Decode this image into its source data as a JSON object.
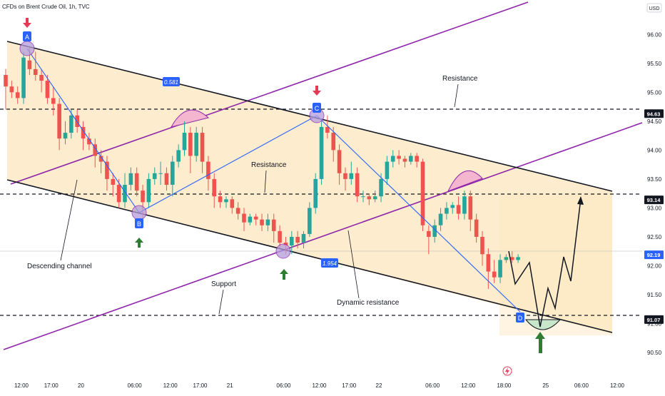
{
  "chart_data": {
    "type": "candlestick",
    "title": "CFDs on Brent Crude Oil, 1h, TVC",
    "currency": "USD",
    "ylim": [
      90.18,
      96.25
    ],
    "y_ticks": [
      {
        "label": "96.00",
        "v": 96.0
      },
      {
        "label": "95.50",
        "v": 95.5
      },
      {
        "label": "95.00",
        "v": 95.0
      },
      {
        "label": "94.50",
        "v": 94.5
      },
      {
        "label": "94.00",
        "v": 94.0
      },
      {
        "label": "93.50",
        "v": 93.5
      },
      {
        "label": "93.00",
        "v": 93.0
      },
      {
        "label": "92.50",
        "v": 92.5
      },
      {
        "label": "92.00",
        "v": 92.0
      },
      {
        "label": "91.50",
        "v": 91.5
      },
      {
        "label": "91.00",
        "v": 91.0
      },
      {
        "label": "90.50",
        "v": 90.5
      }
    ],
    "x_ticks": [
      {
        "label": "12:00",
        "i": 0
      },
      {
        "label": "17:00",
        "i": 5
      },
      {
        "label": "20",
        "i": 10
      },
      {
        "label": "06:00",
        "i": 19
      },
      {
        "label": "12:00",
        "i": 25
      },
      {
        "label": "17:00",
        "i": 30
      },
      {
        "label": "21",
        "i": 35
      },
      {
        "label": "06:00",
        "i": 44
      },
      {
        "label": "12:00",
        "i": 50
      },
      {
        "label": "17:00",
        "i": 55
      },
      {
        "label": "22",
        "i": 60
      },
      {
        "label": "06:00",
        "i": 69
      },
      {
        "label": "12:00",
        "i": 75
      },
      {
        "label": "18:00",
        "i": 81
      },
      {
        "label": "25",
        "i": 88
      },
      {
        "label": "06:00",
        "i": 94
      },
      {
        "label": "12:00",
        "i": 100
      }
    ],
    "candles": [
      [
        95.3,
        95.1,
        95.4,
        94.7
      ],
      [
        95.1,
        95.0,
        95.2,
        94.9
      ],
      [
        95.0,
        94.9,
        95.1,
        94.8
      ],
      [
        94.9,
        95.6,
        95.7,
        94.8
      ],
      [
        95.55,
        95.4,
        95.8,
        95.3
      ],
      [
        95.4,
        95.3,
        95.7,
        95.2
      ],
      [
        95.3,
        95.2,
        95.4,
        95.0
      ],
      [
        95.2,
        94.9,
        95.3,
        94.8
      ],
      [
        94.9,
        94.8,
        95.1,
        94.6
      ],
      [
        94.8,
        94.2,
        94.9,
        94.0
      ],
      [
        94.2,
        94.3,
        94.5,
        94.1
      ],
      [
        94.3,
        94.6,
        94.7,
        94.2
      ],
      [
        94.6,
        94.4,
        94.7,
        94.3
      ],
      [
        94.4,
        94.2,
        94.5,
        94.0
      ],
      [
        94.2,
        94.1,
        94.3,
        94.0
      ],
      [
        94.1,
        93.9,
        94.2,
        93.7
      ],
      [
        93.9,
        93.8,
        94.0,
        93.6
      ],
      [
        93.8,
        93.5,
        93.9,
        93.3
      ],
      [
        93.5,
        93.4,
        93.6,
        93.2
      ],
      [
        93.4,
        93.1,
        93.5,
        93.0
      ],
      [
        93.1,
        93.4,
        93.6,
        93.0
      ],
      [
        93.4,
        93.6,
        93.7,
        93.3
      ],
      [
        93.6,
        93.3,
        93.7,
        93.2
      ],
      [
        93.3,
        93.1,
        93.4,
        92.7
      ],
      [
        93.1,
        93.5,
        93.6,
        93.0
      ],
      [
        93.5,
        93.6,
        93.7,
        93.4
      ],
      [
        93.6,
        93.6,
        93.8,
        93.4
      ],
      [
        93.6,
        93.4,
        93.7,
        93.3
      ],
      [
        93.4,
        93.8,
        93.9,
        93.2
      ],
      [
        93.8,
        94.0,
        94.1,
        93.7
      ],
      [
        94.0,
        94.3,
        94.5,
        93.9
      ],
      [
        94.3,
        93.9,
        94.4,
        93.6
      ],
      [
        93.9,
        94.3,
        94.4,
        93.8
      ],
      [
        94.3,
        93.8,
        94.4,
        93.6
      ],
      [
        93.8,
        93.5,
        93.9,
        93.3
      ],
      [
        93.5,
        93.2,
        93.6,
        93.0
      ],
      [
        93.2,
        93.1,
        93.3,
        93.0
      ],
      [
        93.1,
        93.15,
        93.2,
        93.0
      ],
      [
        93.15,
        93.0,
        93.2,
        92.9
      ],
      [
        93.0,
        92.9,
        93.1,
        92.8
      ],
      [
        92.9,
        92.75,
        93.0,
        92.6
      ],
      [
        92.75,
        92.85,
        92.9,
        92.7
      ],
      [
        92.85,
        92.8,
        92.9,
        92.7
      ],
      [
        92.8,
        92.7,
        92.9,
        92.6
      ],
      [
        92.7,
        92.8,
        92.9,
        92.6
      ],
      [
        92.8,
        92.6,
        92.9,
        92.4
      ],
      [
        92.6,
        92.4,
        92.7,
        92.3
      ],
      [
        92.4,
        92.35,
        92.5,
        92.2
      ],
      [
        92.35,
        92.5,
        92.6,
        92.2
      ],
      [
        92.5,
        92.4,
        92.6,
        92.3
      ],
      [
        92.4,
        92.55,
        92.6,
        92.3
      ],
      [
        92.55,
        93.0,
        93.1,
        92.5
      ],
      [
        93.0,
        93.5,
        93.6,
        92.9
      ],
      [
        93.5,
        94.4,
        94.5,
        93.4
      ],
      [
        94.4,
        94.3,
        94.6,
        94.2
      ],
      [
        94.3,
        94.0,
        94.4,
        93.8
      ],
      [
        94.0,
        93.6,
        94.1,
        93.4
      ],
      [
        93.6,
        93.5,
        93.7,
        93.3
      ],
      [
        93.5,
        93.6,
        93.8,
        93.4
      ],
      [
        93.6,
        93.2,
        93.7,
        93.1
      ],
      [
        93.2,
        93.2,
        93.3,
        93.1
      ],
      [
        93.2,
        93.15,
        93.25,
        93.05
      ],
      [
        93.15,
        93.2,
        93.3,
        93.1
      ],
      [
        93.2,
        93.5,
        93.6,
        93.1
      ],
      [
        93.5,
        93.8,
        93.9,
        93.4
      ],
      [
        93.8,
        93.9,
        94.0,
        93.7
      ],
      [
        93.9,
        93.85,
        94.0,
        93.75
      ],
      [
        93.85,
        93.8,
        93.9,
        93.7
      ],
      [
        93.8,
        93.9,
        93.95,
        93.75
      ],
      [
        93.9,
        93.8,
        93.95,
        93.7
      ],
      [
        93.8,
        92.7,
        93.85,
        92.6
      ],
      [
        92.6,
        92.5,
        92.7,
        92.2
      ],
      [
        92.5,
        92.7,
        92.8,
        92.4
      ],
      [
        92.7,
        92.9,
        93.0,
        92.6
      ],
      [
        92.9,
        93.0,
        93.1,
        92.8
      ],
      [
        93.0,
        93.05,
        93.1,
        92.9
      ],
      [
        93.05,
        92.9,
        93.2,
        92.8
      ],
      [
        92.9,
        93.2,
        93.3,
        92.8
      ],
      [
        93.2,
        92.8,
        93.3,
        92.6
      ],
      [
        92.8,
        92.5,
        92.9,
        92.4
      ],
      [
        92.5,
        92.2,
        92.6,
        92.0
      ],
      [
        92.2,
        91.9,
        92.3,
        91.6
      ],
      [
        91.9,
        91.8,
        92.1,
        91.7
      ],
      [
        91.8,
        92.1,
        92.2,
        91.7
      ],
      [
        92.1,
        92.15,
        92.2,
        92.05
      ],
      [
        92.15,
        92.1,
        92.25,
        92.05
      ],
      [
        92.1,
        92.15,
        92.2,
        92.05
      ]
    ],
    "annotations": {
      "resistance_top": "Resistance",
      "resistance_mid": "Resistance",
      "descending_channel": "Descending channel",
      "support": "Support",
      "dynamic_resistance": "Dynamic resistance",
      "fib1": "0.581",
      "fib2": "1.954",
      "point_a": "A",
      "point_b": "B",
      "point_c": "C",
      "point_d": "D"
    },
    "levels": [
      {
        "label": "94.63",
        "v": 94.63
      },
      {
        "label": "93.14",
        "v": 93.14
      },
      {
        "label": "91.07",
        "v": 91.07
      }
    ],
    "current_price": {
      "label": "92.19",
      "v": 92.19
    },
    "colors": {
      "up": "#26a69a",
      "down": "#ef5350",
      "channel_fill": "#fde9c4",
      "trendline": "#8e24aa",
      "abcd": "#2962ff",
      "label_bg": "#2962ff",
      "up_arrow": "#2e7d32",
      "down_arrow": "#e53955",
      "tag_bg": "#131722"
    }
  }
}
